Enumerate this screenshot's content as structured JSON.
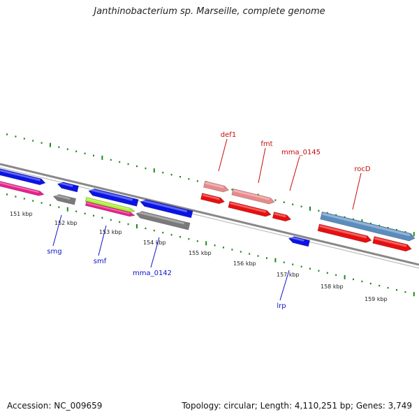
{
  "title": "Janthinobacterium sp. Marseille, complete genome",
  "footer": {
    "accession": "Accession: NC_009659",
    "stats": "Topology: circular; Length: 4,110,251 bp; Genes: 3,749"
  },
  "colors": {
    "backbone": "#888888",
    "tick_green": "#1b8a1b",
    "blue": "#0a14e6",
    "pink": "#e8208c",
    "gray": "#7a7a7a",
    "lime": "#a8f032",
    "red": "#e80f0f",
    "salmon": "#e88a8a",
    "steel": "#5a8cbe",
    "label_blue": "#0a14c8",
    "label_red": "#c80a0a"
  },
  "ruler": {
    "kbp_labels": [
      "151 kbp",
      "152 kbp",
      "153 kbp",
      "154 kbp",
      "155 kbp",
      "156 kbp",
      "157 kbp",
      "158 kbp",
      "159 kbp"
    ]
  },
  "gene_labels": {
    "top": [
      "def1",
      "fmt",
      "mma_0145",
      "rocD"
    ],
    "bottom": [
      "smg",
      "smf",
      "mma_0142",
      "lrp"
    ]
  },
  "genes": [
    {
      "color": "blue",
      "dir": "right"
    },
    {
      "color": "pink",
      "dir": "right"
    },
    {
      "color": "blue",
      "dir": "left"
    },
    {
      "color": "gray",
      "dir": "left"
    },
    {
      "color": "blue",
      "dir": "left"
    },
    {
      "color": "lime",
      "dir": "right"
    },
    {
      "color": "pink",
      "dir": "right"
    },
    {
      "color": "blue",
      "dir": "left"
    },
    {
      "color": "gray",
      "dir": "left"
    },
    {
      "color": "salmon",
      "dir": "right"
    },
    {
      "color": "red",
      "dir": "right"
    },
    {
      "color": "salmon",
      "dir": "right"
    },
    {
      "color": "red",
      "dir": "right"
    },
    {
      "color": "red",
      "dir": "right"
    },
    {
      "color": "blue",
      "dir": "left"
    },
    {
      "color": "steel",
      "dir": "right"
    },
    {
      "color": "red",
      "dir": "right"
    },
    {
      "color": "red",
      "dir": "right"
    }
  ]
}
